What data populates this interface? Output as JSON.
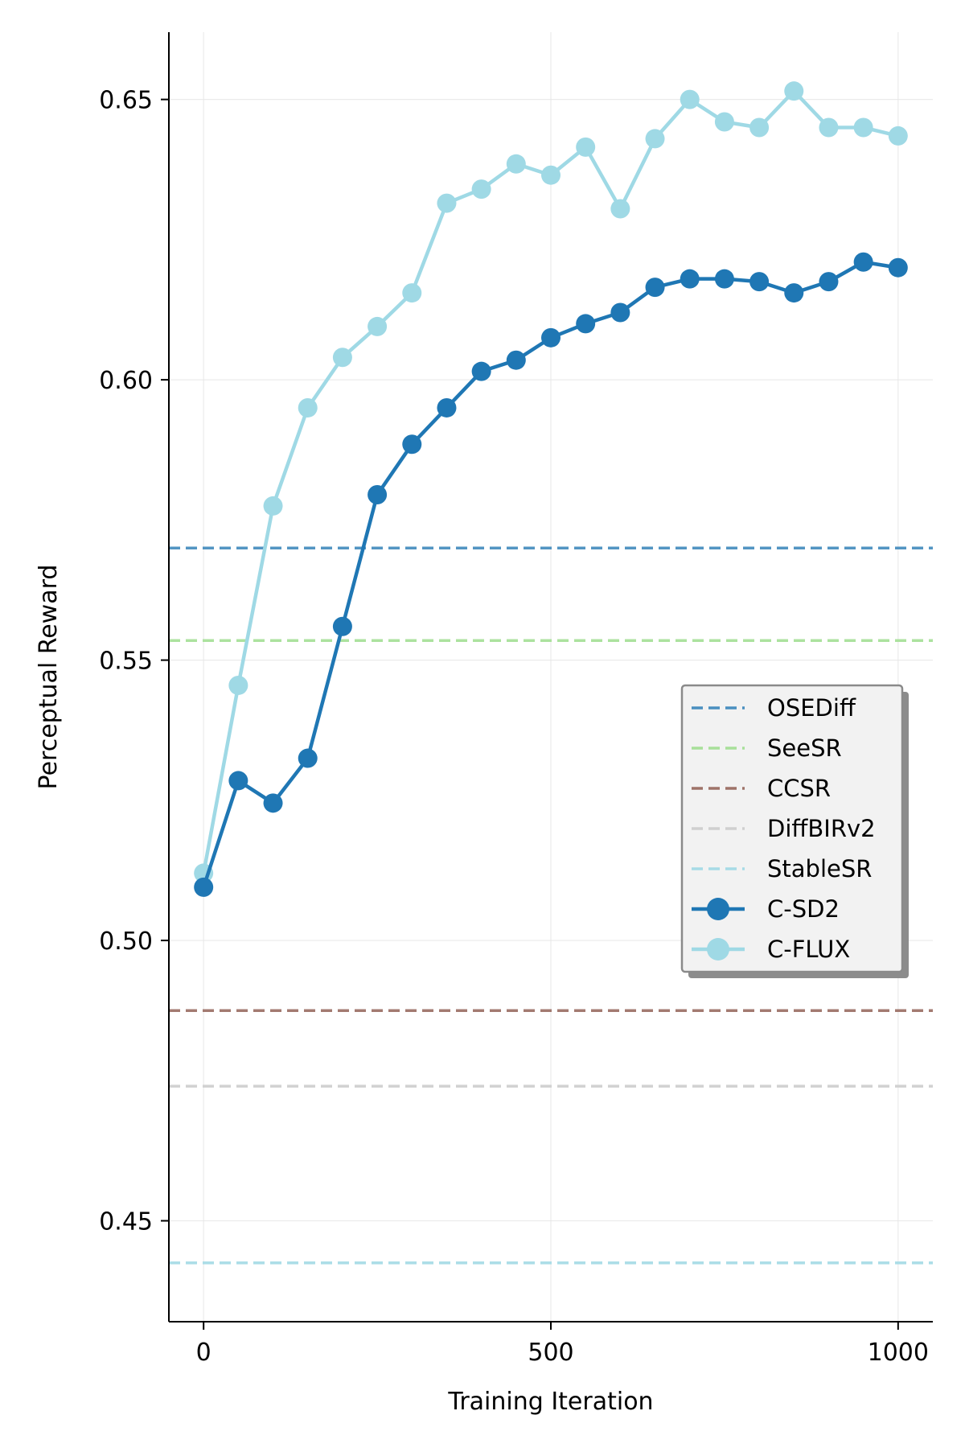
{
  "chart_data": {
    "type": "line",
    "title": "",
    "xlabel": "Training Iteration",
    "ylabel": "Perceptual Reward",
    "xlim": [
      -50,
      1050
    ],
    "ylim": [
      0.432,
      0.662
    ],
    "xticks": [
      0,
      500,
      1000
    ],
    "xtick_labels": [
      "0",
      "500",
      "1000"
    ],
    "yticks": [
      0.45,
      0.5,
      0.55,
      0.6,
      0.65
    ],
    "ytick_labels": [
      "0.45",
      "0.50",
      "0.55",
      "0.60",
      "0.65"
    ],
    "grid": true,
    "legend_position": "center-right",
    "baselines": [
      {
        "name": "OSEDiff",
        "value": 0.57,
        "color": "#4a8fc0"
      },
      {
        "name": "SeeSR",
        "value": 0.5535,
        "color": "#a8e09a"
      },
      {
        "name": "CCSR",
        "value": 0.4875,
        "color": "#9e7369"
      },
      {
        "name": "DiffBIRv2",
        "value": 0.474,
        "color": "#d0d0d0"
      },
      {
        "name": "StableSR",
        "value": 0.4425,
        "color": "#a7dbe6"
      }
    ],
    "x": [
      0,
      50,
      100,
      150,
      200,
      250,
      300,
      350,
      400,
      450,
      500,
      550,
      600,
      650,
      700,
      750,
      800,
      850,
      900,
      950,
      1000
    ],
    "series": [
      {
        "name": "C-SD2",
        "color": "#1f77b4",
        "values": [
          0.5095,
          0.5285,
          0.5245,
          0.5325,
          0.556,
          0.5795,
          0.5885,
          0.595,
          0.6015,
          0.6035,
          0.6075,
          0.61,
          0.612,
          0.6165,
          0.618,
          0.618,
          0.6175,
          0.6155,
          0.6175,
          0.621,
          0.62
        ]
      },
      {
        "name": "C-FLUX",
        "color": "#9fd9e5",
        "values": [
          0.512,
          0.5455,
          0.5775,
          0.595,
          0.604,
          0.6095,
          0.6155,
          0.6315,
          0.634,
          0.6385,
          0.6365,
          0.6415,
          0.6305,
          0.643,
          0.65,
          0.646,
          0.645,
          0.6515,
          0.645,
          0.645,
          0.6435
        ]
      }
    ]
  }
}
